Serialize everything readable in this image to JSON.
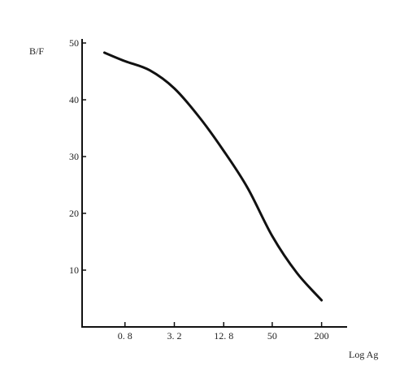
{
  "chart_data": {
    "type": "line",
    "title": "",
    "xlabel": "Log Ag",
    "ylabel": "B/F",
    "x_scale": "log",
    "x_ticks": [
      0.8,
      3.2,
      12.8,
      50,
      200
    ],
    "x_tick_labels": [
      "0. 8",
      "3. 2",
      "12. 8",
      "50",
      "200"
    ],
    "y_ticks": [
      10,
      20,
      30,
      40,
      50
    ],
    "y_tick_labels": [
      "10",
      "20",
      "30",
      "40",
      "50"
    ],
    "xlim": [
      0.24,
      400
    ],
    "ylim": [
      0,
      50
    ],
    "grid": false,
    "series": [
      {
        "x": [
          0.45,
          0.8,
          1.6,
          3.2,
          6.4,
          12.8,
          25,
          50,
          100,
          200
        ],
        "y": [
          48.3,
          46.8,
          45.2,
          42.0,
          37.0,
          31.0,
          24.5,
          16.0,
          9.5,
          4.7
        ]
      }
    ]
  }
}
